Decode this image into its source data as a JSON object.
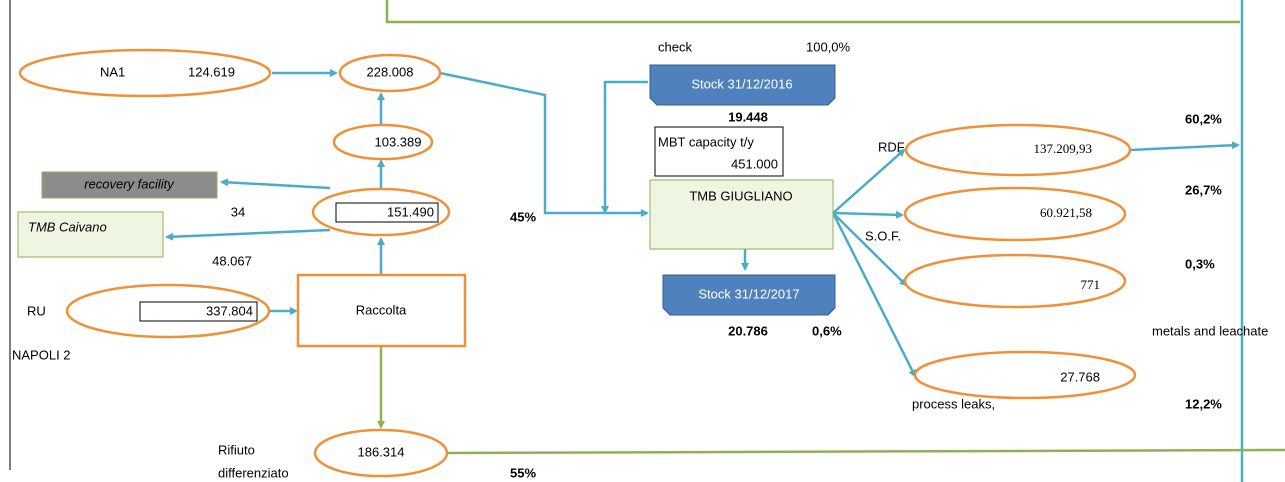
{
  "na1": {
    "name": "NA1",
    "value": "124.619"
  },
  "total": {
    "value": "228.008"
  },
  "mid": {
    "value": "103.389"
  },
  "sorted": {
    "value": "151.490"
  },
  "recovery": {
    "name": "recovery facility",
    "value": "34"
  },
  "caivano": {
    "name": "TMB Caivano",
    "value": "48.067"
  },
  "ru": {
    "name": "RU",
    "value": "337.804"
  },
  "area": "NAPOLI 2",
  "raccolta": "Raccolta",
  "differenziato": {
    "name": [
      "Rifiuto",
      "differenziato"
    ],
    "value": "186.314"
  },
  "shares": {
    "mbt": "45%",
    "differenziato": "55%"
  },
  "check": {
    "label": "check",
    "value": "100,0%"
  },
  "stock_2016": {
    "name": "Stock  31/12/2016",
    "value": "19.448"
  },
  "capacity": {
    "label": "MBT capacity t/y",
    "value": "451.000"
  },
  "tmb_giugliano": "TMB GIUGLIANO",
  "stock_2017": {
    "name": "Stock 31/12/2017",
    "value": "20.786",
    "share": "0,6%"
  },
  "outputs": [
    {
      "name": "RDF",
      "value": "137.209,93",
      "share": "60,2%"
    },
    {
      "name": "S.O.F.",
      "value": "60.921,58",
      "share": "26,7%"
    },
    {
      "name": "metals and leachate",
      "value": "771",
      "share": "0,3%"
    },
    {
      "name": "process leaks,",
      "value": "27.768",
      "share": "12,2%"
    }
  ]
}
